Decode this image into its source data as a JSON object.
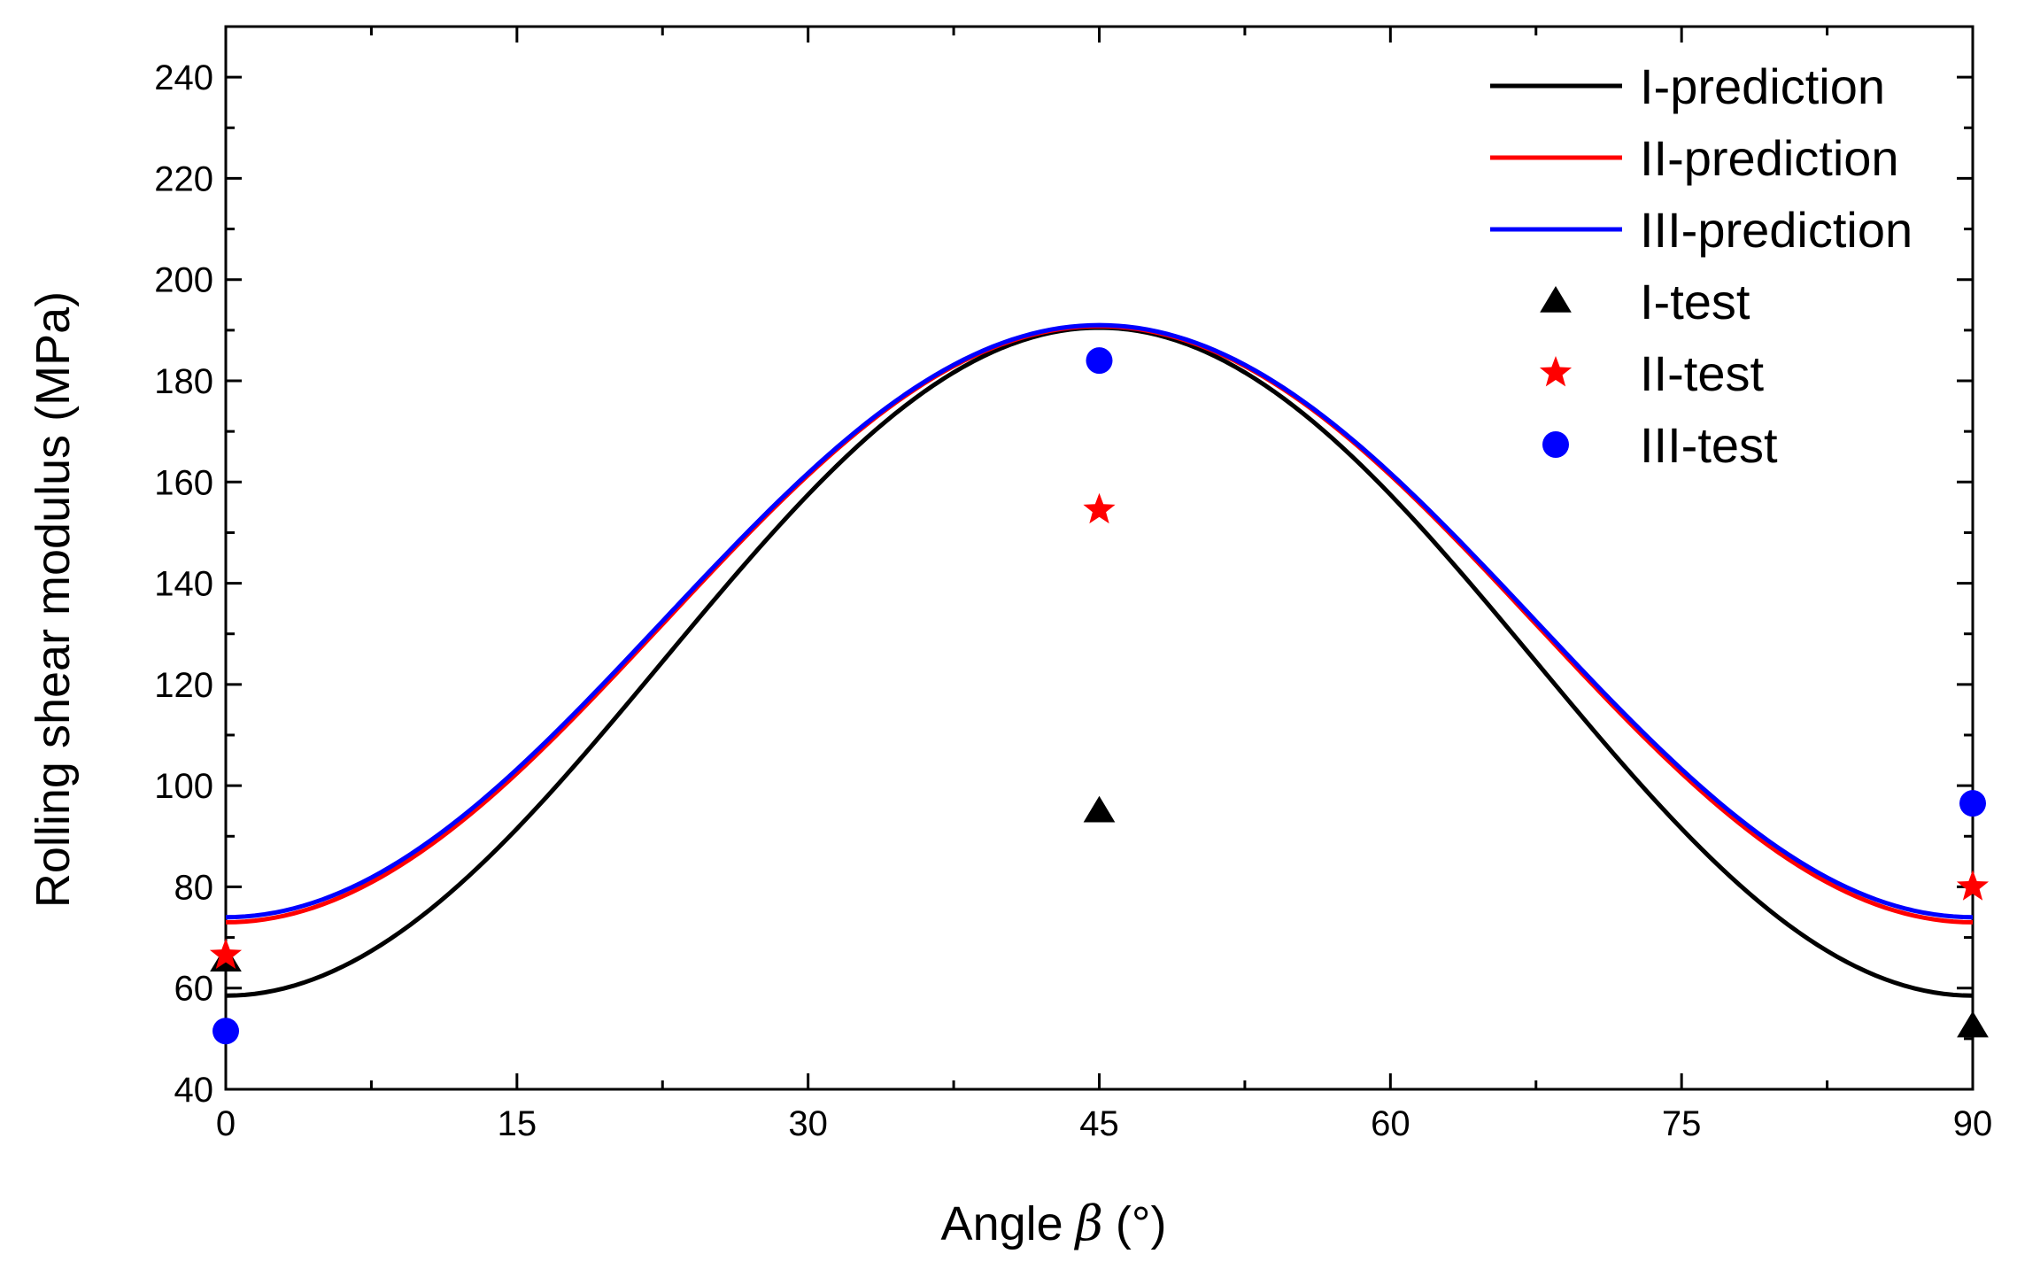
{
  "chart_data": {
    "type": "line",
    "xlabel": "Angle",
    "xlabel_symbol": "β",
    "xlabel_unit": "(°)",
    "ylabel": "Rolling shear modulus (MPa)",
    "xlim": [
      0,
      90
    ],
    "ylim": [
      40,
      250
    ],
    "xticks": [
      0,
      15,
      30,
      45,
      60,
      75,
      90
    ],
    "yticks": [
      40,
      60,
      80,
      100,
      120,
      140,
      160,
      180,
      200,
      220,
      240
    ],
    "grid": false,
    "legend_position": "top-right",
    "series": [
      {
        "name": "I-prediction",
        "kind": "line",
        "color": "#000000",
        "min": 58.5,
        "max": 190.5
      },
      {
        "name": "II-prediction",
        "kind": "line",
        "color": "#ff0000",
        "min": 73.0,
        "max": 190.8
      },
      {
        "name": "III-prediction",
        "kind": "line",
        "color": "#0000ff",
        "min": 74.0,
        "max": 191.0
      },
      {
        "name": "I-test",
        "kind": "scatter",
        "marker": "triangle",
        "color": "#000000",
        "x": [
          0,
          45,
          90
        ],
        "y": [
          65.5,
          95.0,
          52.5
        ]
      },
      {
        "name": "II-test",
        "kind": "scatter",
        "marker": "star",
        "color": "#ff0000",
        "x": [
          0,
          45,
          90
        ],
        "y": [
          66.5,
          154.5,
          80.0
        ]
      },
      {
        "name": "III-test",
        "kind": "scatter",
        "marker": "circle",
        "color": "#0000ff",
        "x": [
          0,
          45,
          90
        ],
        "y": [
          51.5,
          184.0,
          96.5
        ]
      }
    ]
  }
}
